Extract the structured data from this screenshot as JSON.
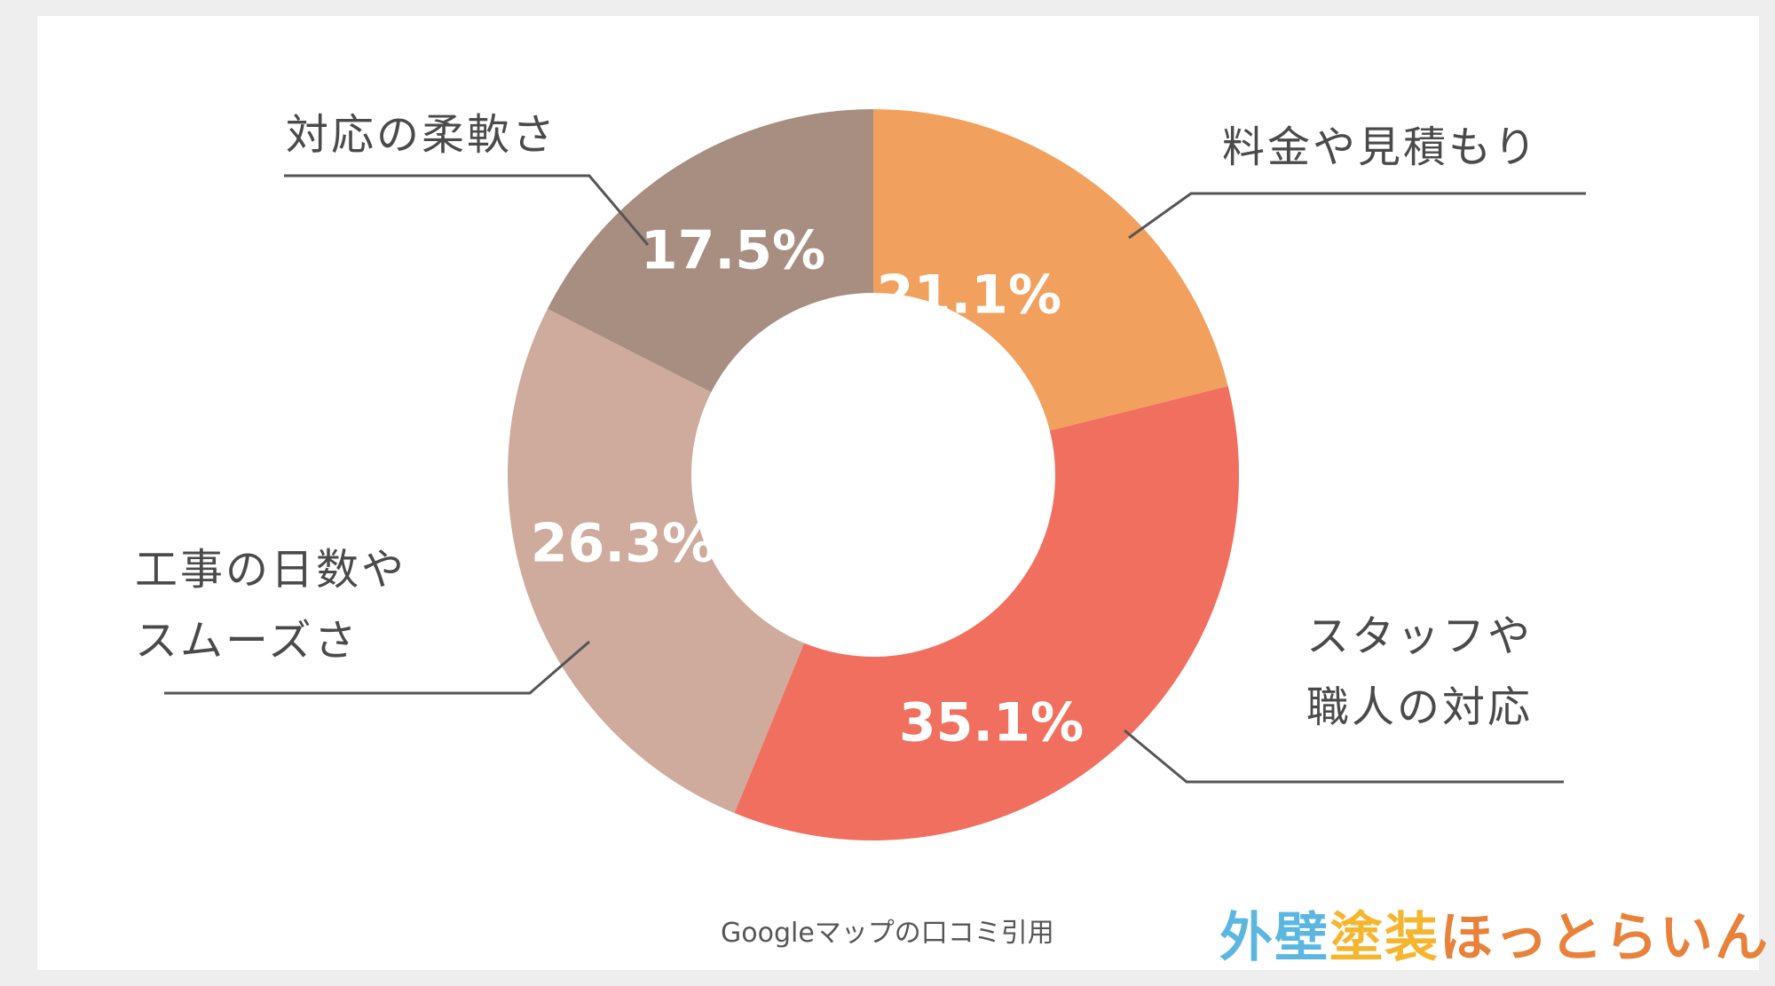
{
  "chart_data": {
    "type": "pie",
    "donut": true,
    "segments": [
      {
        "label_lines": [
          "料金や見積もり"
        ],
        "value": 21.1,
        "value_label": "21.1%",
        "color": "#F2A05E"
      },
      {
        "label_lines": [
          "スタッフや",
          "職人の対応"
        ],
        "value": 35.1,
        "value_label": "35.1%",
        "color": "#F16F5E"
      },
      {
        "label_lines": [
          "工事の日数や",
          "スムーズさ"
        ],
        "value": 26.3,
        "value_label": "26.3%",
        "color": "#CFAB9D"
      },
      {
        "label_lines": [
          "対応の柔軟さ"
        ],
        "value": 17.5,
        "value_label": "17.5%",
        "color": "#A88D81"
      }
    ]
  },
  "source_note": "Googleマップの口コミ引用",
  "logo": {
    "text": "外壁塗装ほっとらいん",
    "parts": [
      {
        "text": "外壁",
        "color": "#5BB7E0"
      },
      {
        "text": "塗装",
        "color": "#F5B52E"
      },
      {
        "text": "ほっとらいん",
        "color": "#E8813A"
      }
    ]
  }
}
